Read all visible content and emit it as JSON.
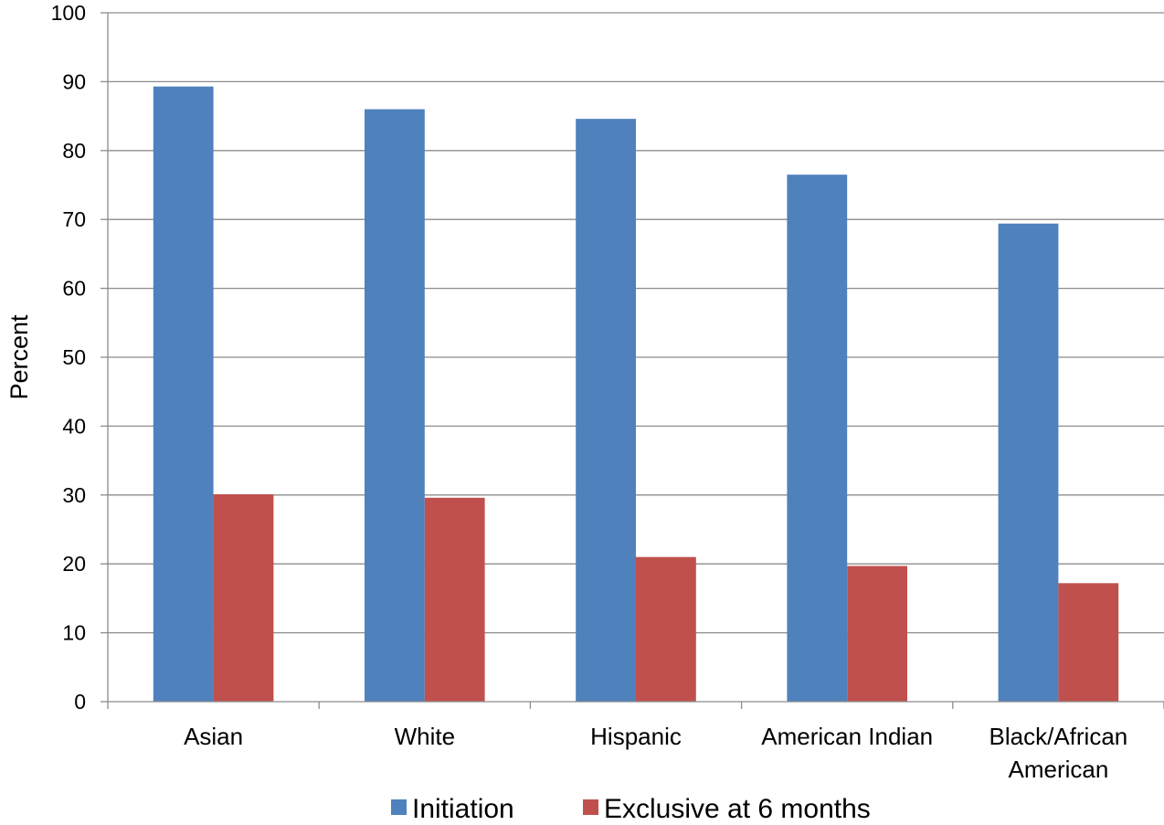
{
  "chart_data": {
    "type": "bar",
    "categories": [
      [
        "Asian"
      ],
      [
        "White"
      ],
      [
        "Hispanic"
      ],
      [
        "American Indian"
      ],
      [
        "Black/African",
        "American"
      ]
    ],
    "series": [
      {
        "name": "Initiation",
        "color": "#4F81BD",
        "values": [
          89.3,
          86.0,
          84.6,
          76.5,
          69.4
        ]
      },
      {
        "name": "Exclusive at 6 months",
        "color": "#C0504D",
        "values": [
          30.1,
          29.6,
          21.0,
          19.7,
          17.2
        ]
      }
    ],
    "ylabel": "Percent",
    "ylim": [
      0,
      100
    ],
    "yticks": [
      "0",
      "10",
      "20",
      "30",
      "40",
      "50",
      "60",
      "70",
      "80",
      "90",
      "100"
    ],
    "grid": true,
    "legend": "bottom-center",
    "gridline_color": "#8C8C8C"
  }
}
